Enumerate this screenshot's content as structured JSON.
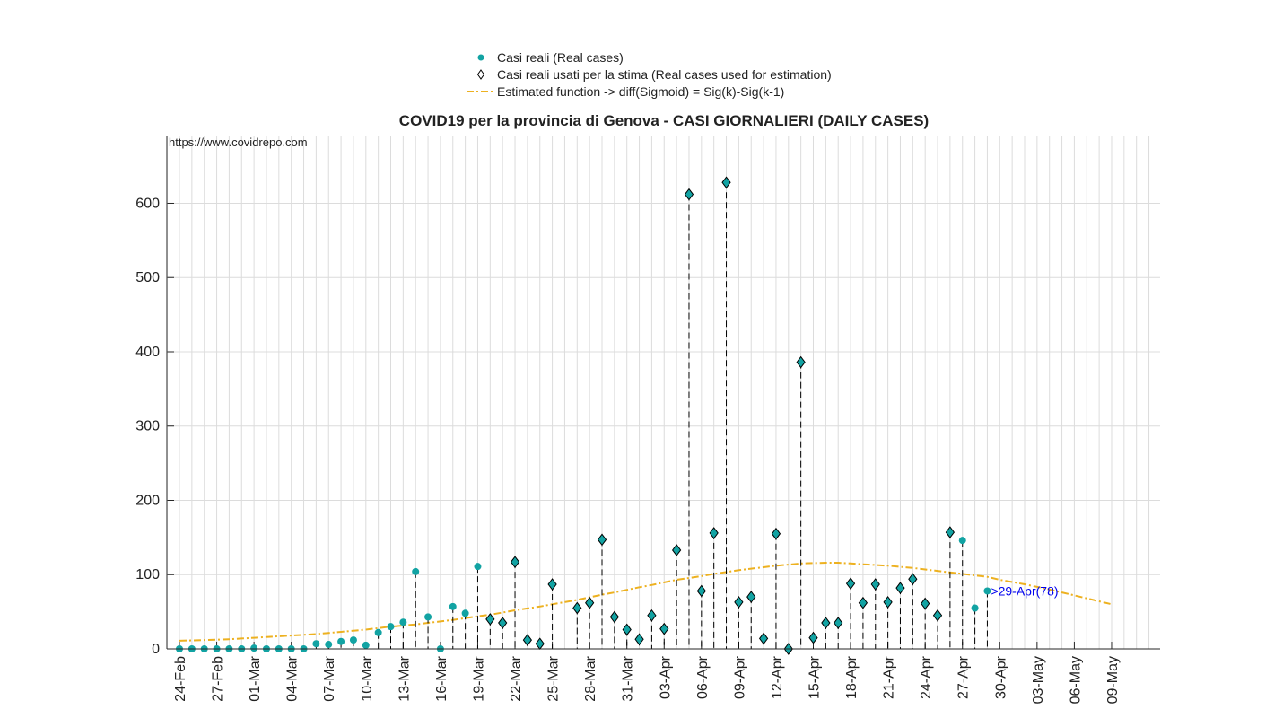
{
  "chart_data": {
    "type": "stem",
    "title": "COVID19 per la provincia di Genova - CASI GIORNALIERI (DAILY CASES)",
    "watermark": "https://www.covidrepo.com",
    "annotation": ">29-Apr(78)",
    "categories": [
      "24-Feb",
      null,
      null,
      "27-Feb",
      null,
      null,
      "01-Mar",
      null,
      null,
      "04-Mar",
      null,
      null,
      "07-Mar",
      null,
      null,
      "10-Mar",
      null,
      null,
      "13-Mar",
      null,
      null,
      "16-Mar",
      null,
      null,
      "19-Mar",
      null,
      null,
      "22-Mar",
      null,
      null,
      "25-Mar",
      null,
      null,
      "28-Mar",
      null,
      null,
      "31-Mar",
      null,
      null,
      "03-Apr",
      null,
      null,
      "06-Apr",
      null,
      null,
      "09-Apr",
      null,
      null,
      "12-Apr",
      null,
      null,
      "15-Apr",
      null,
      null,
      "18-Apr",
      null,
      null,
      "21-Apr",
      null,
      null,
      "24-Apr",
      null,
      null,
      "27-Apr",
      null,
      null,
      "30-Apr",
      null,
      null,
      "03-May",
      null,
      null,
      "06-May",
      null,
      null,
      "09-May"
    ],
    "series": [
      {
        "name": "Casi reali (Real cases)",
        "marker": "o",
        "color": "#12a3a3",
        "values": [
          0,
          0,
          0,
          0,
          0,
          0,
          1,
          0,
          0,
          0,
          0,
          7,
          6,
          10,
          12,
          5,
          22,
          30,
          36,
          104,
          43,
          0,
          57,
          48,
          111,
          40,
          35,
          117,
          12,
          7,
          87,
          null,
          55,
          62,
          147,
          43,
          26,
          13,
          45,
          27,
          133,
          612,
          78,
          156,
          628,
          63,
          70,
          14,
          155,
          0,
          386,
          15,
          35,
          35,
          88,
          62,
          87,
          63,
          82,
          94,
          61,
          45,
          157,
          146,
          55,
          78,
          null,
          null,
          null,
          null,
          null,
          null,
          null,
          null,
          null,
          null
        ]
      },
      {
        "name": "Casi reali usati per la stima (Real cases used for estimation)",
        "marker": "d",
        "color": "#12a3a3",
        "values": [
          null,
          null,
          null,
          null,
          null,
          null,
          null,
          null,
          null,
          null,
          null,
          null,
          null,
          null,
          null,
          null,
          null,
          null,
          null,
          null,
          null,
          null,
          null,
          null,
          null,
          40,
          35,
          117,
          12,
          7,
          87,
          null,
          55,
          62,
          147,
          43,
          26,
          13,
          45,
          27,
          133,
          612,
          78,
          156,
          628,
          63,
          70,
          14,
          155,
          0,
          386,
          15,
          35,
          35,
          88,
          62,
          87,
          63,
          82,
          94,
          61,
          45,
          157,
          null,
          null,
          null,
          null,
          null,
          null,
          null,
          null,
          null,
          null,
          null,
          null,
          null
        ]
      },
      {
        "name": "Estimated function -> diff(Sigmoid) = Sig(k)-Sig(k-1)",
        "linestyle": "-.",
        "color": "#edb120",
        "values": [
          11,
          11.5,
          12,
          12.5,
          13,
          14,
          15,
          16,
          17,
          18,
          19,
          20,
          21.5,
          23,
          24.5,
          26,
          28,
          30,
          31.5,
          33,
          35,
          37,
          39,
          41.5,
          44,
          46,
          49,
          52,
          54.5,
          57,
          60,
          63,
          66,
          69.5,
          73,
          76,
          79.5,
          83,
          86,
          89.5,
          93,
          95.5,
          98,
          101,
          103.5,
          106,
          108,
          110,
          112,
          113.5,
          115,
          115.5,
          116,
          116,
          115,
          114,
          113,
          112,
          110.5,
          109,
          107,
          105,
          103,
          101,
          99,
          97,
          93,
          90,
          87,
          83.5,
          80,
          76,
          72,
          68,
          64,
          60
        ]
      }
    ],
    "ylim": [
      0,
      690
    ],
    "yticks": [
      0,
      100,
      200,
      300,
      400,
      500,
      600
    ],
    "grid": true
  }
}
